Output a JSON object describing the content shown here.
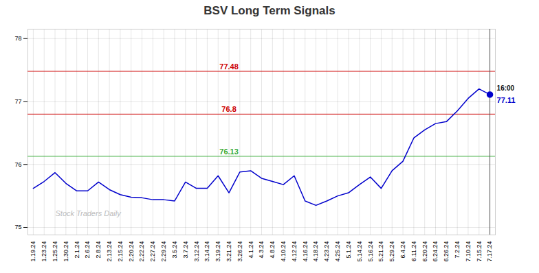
{
  "chart_data": {
    "type": "line",
    "title": "BSV Long Term Signals",
    "categories": [
      "1.19.24",
      "1.23.24",
      "1.25.24",
      "1.30.24",
      "2.1.24",
      "2.6.24",
      "2.8.24",
      "2.13.24",
      "2.15.24",
      "2.20.24",
      "2.22.24",
      "2.27.24",
      "2.29.24",
      "3.5.24",
      "3.7.24",
      "3.12.24",
      "3.14.24",
      "3.19.24",
      "3.21.24",
      "3.26.24",
      "4.1.24",
      "4.3.24",
      "4.8.24",
      "4.10.24",
      "4.12.24",
      "4.16.24",
      "4.18.24",
      "4.23.24",
      "4.25.24",
      "5.1.24",
      "5.14.24",
      "5.16.24",
      "5.21.24",
      "5.29.24",
      "6.4.24",
      "6.11.24",
      "6.20.24",
      "6.24.24",
      "6.26.24",
      "7.2.24",
      "7.10.24",
      "7.15.24",
      "7.17.24"
    ],
    "series": [
      {
        "name": "BSV",
        "color": "#0000cc",
        "values": [
          75.62,
          75.73,
          75.87,
          75.7,
          75.58,
          75.58,
          75.72,
          75.6,
          75.52,
          75.48,
          75.47,
          75.44,
          75.44,
          75.42,
          75.72,
          75.62,
          75.62,
          75.82,
          75.55,
          75.88,
          75.9,
          75.78,
          75.73,
          75.68,
          75.82,
          75.42,
          75.35,
          75.42,
          75.5,
          75.55,
          75.68,
          75.8,
          75.62,
          75.9,
          76.05,
          76.42,
          76.55,
          76.65,
          76.68,
          76.85,
          77.05,
          77.2,
          77.11
        ]
      }
    ],
    "ylim": [
      74.88,
      78.15
    ],
    "yticks": [
      75,
      76,
      77,
      78
    ],
    "grid": true,
    "reference_lines": [
      {
        "y": 77.48,
        "label": "77.48",
        "color": "#cc0000"
      },
      {
        "y": 76.8,
        "label": "76.8",
        "color": "#cc0000"
      },
      {
        "y": 76.13,
        "label": "76.13",
        "color": "#33aa33"
      }
    ],
    "last_point": {
      "x": "7.17.24",
      "y": 77.11,
      "label": "16:00",
      "value_label": "77.11",
      "color": "#0000cc",
      "vline_color": "#555555"
    },
    "watermark": {
      "text": "Stock Traders Daily",
      "color": "#bbbbbb"
    }
  }
}
